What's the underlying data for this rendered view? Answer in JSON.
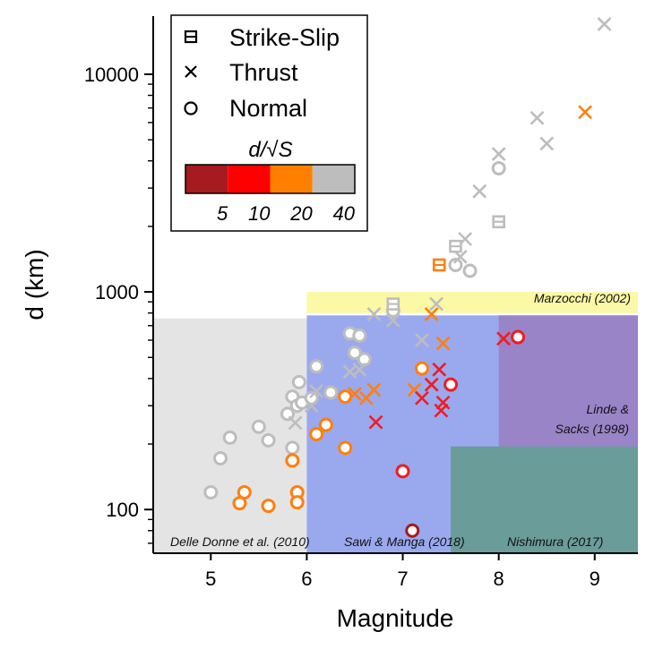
{
  "chart_data": {
    "type": "scatter",
    "xlabel": "Magnitude",
    "ylabel": "d (km)",
    "xlim": [
      4.4,
      9.45
    ],
    "ylim": [
      63,
      18500
    ],
    "y_scale": "log",
    "x_ticks": [
      {
        "v": 5,
        "label": "5"
      },
      {
        "v": 6,
        "label": "6"
      },
      {
        "v": 7,
        "label": "7"
      },
      {
        "v": 8,
        "label": "8"
      },
      {
        "v": 9,
        "label": "9"
      }
    ],
    "y_ticks": [
      {
        "v": 100,
        "label": "100"
      },
      {
        "v": 1000,
        "label": "1000"
      },
      {
        "v": 10000,
        "label": "10000"
      }
    ],
    "regions": [
      {
        "name": "Delle Donne et al. (2010)",
        "x": [
          4.4,
          6.0
        ],
        "y": [
          63,
          755
        ],
        "color": "#e4e4e4"
      },
      {
        "name": "Marzocchi (2002)",
        "x": [
          6.0,
          9.45
        ],
        "y": [
          800,
          1000
        ],
        "color": "#fbf8a6"
      },
      {
        "name": "Sawi & Manga (2018)",
        "x": [
          6.0,
          9.45
        ],
        "y": [
          63,
          780
        ],
        "color": "#9aa9ee"
      },
      {
        "name": "Linde & Sacks (1998)",
        "x": [
          8.0,
          9.45
        ],
        "y": [
          63,
          780
        ],
        "color": "#9a84c8"
      },
      {
        "name": "Nishimura (2017)",
        "x": [
          7.5,
          9.45
        ],
        "y": [
          63,
          195
        ],
        "color": "#6a9c9a"
      }
    ],
    "region_labels": [
      {
        "key": "delle",
        "text": "Delle Donne et al. (2010)"
      },
      {
        "key": "sawi",
        "text": "Sawi & Manga (2018)"
      },
      {
        "key": "nishimura",
        "text": "Nishimura (2017)"
      },
      {
        "key": "marzocchi",
        "text": "Marzocchi (2002)"
      },
      {
        "key": "linde1",
        "text": "Linde &"
      },
      {
        "key": "linde2",
        "text": "Sacks (1998)"
      }
    ],
    "legend": {
      "placement": "top-left",
      "entries": [
        {
          "symbol": "square",
          "label": "Strike-Slip"
        },
        {
          "symbol": "cross",
          "label": "Thrust"
        },
        {
          "symbol": "circle",
          "label": "Normal"
        }
      ],
      "colorbar": {
        "title": "d/√S",
        "colors": [
          "#a51b1f",
          "#ff0000",
          "#ff8000",
          "#bdbdbd"
        ],
        "ticks": [
          "5",
          "10",
          "20",
          "40"
        ]
      }
    },
    "colors": {
      "darkred": "#a51b1f",
      "red": "#ee1c24",
      "orange": "#ff7f0e",
      "gray": "#bdbdbd"
    },
    "points": [
      {
        "x": 5.0,
        "y": 120,
        "shape": "circle",
        "color": "gray"
      },
      {
        "x": 5.1,
        "y": 172,
        "shape": "circle",
        "color": "gray"
      },
      {
        "x": 5.2,
        "y": 214,
        "shape": "circle",
        "color": "gray"
      },
      {
        "x": 5.5,
        "y": 240,
        "shape": "circle",
        "color": "gray"
      },
      {
        "x": 5.6,
        "y": 208,
        "shape": "circle",
        "color": "gray"
      },
      {
        "x": 5.8,
        "y": 275,
        "shape": "circle",
        "color": "gray"
      },
      {
        "x": 5.85,
        "y": 330,
        "shape": "circle",
        "color": "gray"
      },
      {
        "x": 5.85,
        "y": 192,
        "shape": "circle",
        "color": "gray"
      },
      {
        "x": 5.9,
        "y": 300,
        "shape": "circle",
        "color": "gray"
      },
      {
        "x": 5.92,
        "y": 385,
        "shape": "circle",
        "color": "gray"
      },
      {
        "x": 5.95,
        "y": 310,
        "shape": "circle",
        "color": "gray"
      },
      {
        "x": 6.05,
        "y": 325,
        "shape": "circle",
        "color": "gray"
      },
      {
        "x": 6.1,
        "y": 455,
        "shape": "circle",
        "color": "gray"
      },
      {
        "x": 6.25,
        "y": 345,
        "shape": "circle",
        "color": "gray"
      },
      {
        "x": 6.45,
        "y": 645,
        "shape": "circle",
        "color": "gray"
      },
      {
        "x": 6.5,
        "y": 525,
        "shape": "circle",
        "color": "gray"
      },
      {
        "x": 6.55,
        "y": 630,
        "shape": "circle",
        "color": "gray"
      },
      {
        "x": 6.6,
        "y": 490,
        "shape": "circle",
        "color": "gray"
      },
      {
        "x": 6.9,
        "y": 820,
        "shape": "circle",
        "color": "gray"
      },
      {
        "x": 7.55,
        "y": 1330,
        "shape": "circle",
        "color": "gray"
      },
      {
        "x": 7.7,
        "y": 1250,
        "shape": "circle",
        "color": "gray"
      },
      {
        "x": 8.0,
        "y": 3700,
        "shape": "circle",
        "color": "gray"
      },
      {
        "x": 5.88,
        "y": 250,
        "shape": "cross",
        "color": "gray"
      },
      {
        "x": 6.05,
        "y": 300,
        "shape": "cross",
        "color": "gray"
      },
      {
        "x": 6.1,
        "y": 350,
        "shape": "cross",
        "color": "gray"
      },
      {
        "x": 6.45,
        "y": 430,
        "shape": "cross",
        "color": "gray"
      },
      {
        "x": 6.55,
        "y": 440,
        "shape": "cross",
        "color": "gray"
      },
      {
        "x": 6.7,
        "y": 790,
        "shape": "cross",
        "color": "gray"
      },
      {
        "x": 6.9,
        "y": 740,
        "shape": "cross",
        "color": "gray"
      },
      {
        "x": 7.2,
        "y": 600,
        "shape": "cross",
        "color": "gray"
      },
      {
        "x": 7.35,
        "y": 880,
        "shape": "cross",
        "color": "gray"
      },
      {
        "x": 7.6,
        "y": 1450,
        "shape": "cross",
        "color": "gray"
      },
      {
        "x": 7.65,
        "y": 1750,
        "shape": "cross",
        "color": "gray"
      },
      {
        "x": 7.8,
        "y": 2900,
        "shape": "cross",
        "color": "gray"
      },
      {
        "x": 8.0,
        "y": 4300,
        "shape": "cross",
        "color": "gray"
      },
      {
        "x": 8.4,
        "y": 6300,
        "shape": "cross",
        "color": "gray"
      },
      {
        "x": 8.5,
        "y": 4800,
        "shape": "cross",
        "color": "gray"
      },
      {
        "x": 9.1,
        "y": 17000,
        "shape": "cross",
        "color": "gray"
      },
      {
        "x": 6.9,
        "y": 880,
        "shape": "square",
        "color": "gray"
      },
      {
        "x": 7.55,
        "y": 1620,
        "shape": "square",
        "color": "gray"
      },
      {
        "x": 8.0,
        "y": 2100,
        "shape": "square",
        "color": "gray"
      },
      {
        "x": 5.3,
        "y": 107,
        "shape": "circle",
        "color": "orange"
      },
      {
        "x": 5.35,
        "y": 120,
        "shape": "circle",
        "color": "orange"
      },
      {
        "x": 5.6,
        "y": 104,
        "shape": "circle",
        "color": "orange"
      },
      {
        "x": 5.9,
        "y": 120,
        "shape": "circle",
        "color": "orange"
      },
      {
        "x": 5.9,
        "y": 108,
        "shape": "circle",
        "color": "orange"
      },
      {
        "x": 5.85,
        "y": 168,
        "shape": "circle",
        "color": "orange"
      },
      {
        "x": 6.1,
        "y": 222,
        "shape": "circle",
        "color": "orange"
      },
      {
        "x": 6.2,
        "y": 245,
        "shape": "circle",
        "color": "orange"
      },
      {
        "x": 6.4,
        "y": 330,
        "shape": "circle",
        "color": "orange"
      },
      {
        "x": 6.4,
        "y": 192,
        "shape": "circle",
        "color": "orange"
      },
      {
        "x": 7.2,
        "y": 445,
        "shape": "circle",
        "color": "orange"
      },
      {
        "x": 6.5,
        "y": 340,
        "shape": "cross",
        "color": "orange"
      },
      {
        "x": 6.62,
        "y": 325,
        "shape": "cross",
        "color": "orange"
      },
      {
        "x": 6.7,
        "y": 355,
        "shape": "cross",
        "color": "orange"
      },
      {
        "x": 7.12,
        "y": 355,
        "shape": "cross",
        "color": "orange"
      },
      {
        "x": 7.3,
        "y": 790,
        "shape": "cross",
        "color": "orange"
      },
      {
        "x": 7.42,
        "y": 580,
        "shape": "cross",
        "color": "orange"
      },
      {
        "x": 8.9,
        "y": 6700,
        "shape": "cross",
        "color": "orange"
      },
      {
        "x": 7.38,
        "y": 1330,
        "shape": "square",
        "color": "orange"
      },
      {
        "x": 7.0,
        "y": 150,
        "shape": "circle",
        "color": "red"
      },
      {
        "x": 7.5,
        "y": 375,
        "shape": "circle",
        "color": "red"
      },
      {
        "x": 8.2,
        "y": 620,
        "shape": "circle",
        "color": "red"
      },
      {
        "x": 6.72,
        "y": 252,
        "shape": "cross",
        "color": "red"
      },
      {
        "x": 7.2,
        "y": 325,
        "shape": "cross",
        "color": "red"
      },
      {
        "x": 7.3,
        "y": 375,
        "shape": "cross",
        "color": "red"
      },
      {
        "x": 7.38,
        "y": 440,
        "shape": "cross",
        "color": "red"
      },
      {
        "x": 7.42,
        "y": 310,
        "shape": "cross",
        "color": "red"
      },
      {
        "x": 7.4,
        "y": 285,
        "shape": "cross",
        "color": "red"
      },
      {
        "x": 8.05,
        "y": 610,
        "shape": "cross",
        "color": "red"
      },
      {
        "x": 7.1,
        "y": 80,
        "shape": "circle",
        "color": "darkred"
      }
    ]
  }
}
